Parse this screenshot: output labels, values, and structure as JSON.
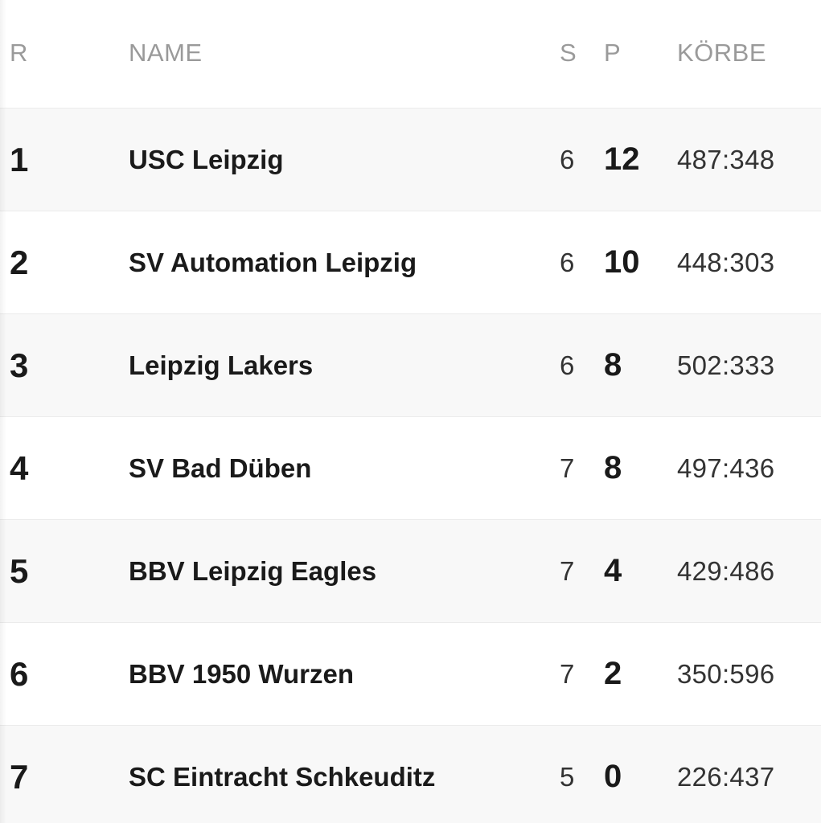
{
  "header": {
    "rank": "R",
    "name": "NAME",
    "s": "S",
    "p": "P",
    "korbe": "KÖRBE"
  },
  "rows": [
    {
      "rank": "1",
      "name": "USC Leipzig",
      "s": "6",
      "p": "12",
      "korbe": "487:348"
    },
    {
      "rank": "2",
      "name": "SV Automation Leipzig",
      "s": "6",
      "p": "10",
      "korbe": "448:303"
    },
    {
      "rank": "3",
      "name": "Leipzig Lakers",
      "s": "6",
      "p": "8",
      "korbe": "502:333"
    },
    {
      "rank": "4",
      "name": "SV Bad Düben",
      "s": "7",
      "p": "8",
      "korbe": "497:436"
    },
    {
      "rank": "5",
      "name": "BBV Leipzig Eagles",
      "s": "7",
      "p": "4",
      "korbe": "429:486"
    },
    {
      "rank": "6",
      "name": "BBV 1950 Wurzen",
      "s": "7",
      "p": "2",
      "korbe": "350:596"
    },
    {
      "rank": "7",
      "name": "SC Eintracht Schkeuditz",
      "s": "5",
      "p": "0",
      "korbe": "226:437"
    }
  ]
}
